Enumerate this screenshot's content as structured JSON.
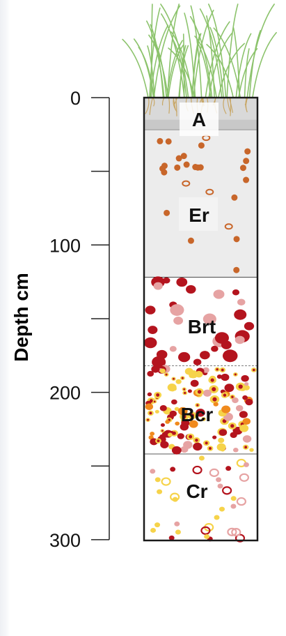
{
  "axis": {
    "label": "Depth cm",
    "ticks": [
      {
        "value": 0,
        "label": "0"
      },
      {
        "value": 50,
        "label": ""
      },
      {
        "value": 100,
        "label": "100"
      },
      {
        "value": 150,
        "label": ""
      },
      {
        "value": 200,
        "label": "200"
      },
      {
        "value": 250,
        "label": ""
      },
      {
        "value": 300,
        "label": "300"
      }
    ],
    "min": 0,
    "max": 300
  },
  "horizons": [
    {
      "id": "a",
      "label": "A",
      "top": 0,
      "bottom": 22,
      "fill": "#d9d9d9",
      "boundary": "solid"
    },
    {
      "id": "er",
      "label": "Er",
      "top": 22,
      "bottom": 122,
      "fill": "#ececec",
      "boundary": "solid"
    },
    {
      "id": "brt",
      "label": "Brt",
      "top": 122,
      "bottom": 182,
      "fill": "#ffffff",
      "boundary": "dashed"
    },
    {
      "id": "bcr",
      "label": "Bcr",
      "top": 182,
      "bottom": 242,
      "fill": "#ffffff",
      "boundary": "solid"
    },
    {
      "id": "cr",
      "label": "Cr",
      "top": 242,
      "bottom": 302,
      "fill": "#ffffff",
      "boundary": "solid"
    }
  ],
  "colors": {
    "outline": "#1a1a1a",
    "grass": "#8cc36c",
    "roots": "#c8a766",
    "mottle_orange": "#c8662a",
    "mottle_red": "#b4141e",
    "mottle_pink": "#e6a3a3",
    "mottle_yellow": "#f6d34a"
  }
}
